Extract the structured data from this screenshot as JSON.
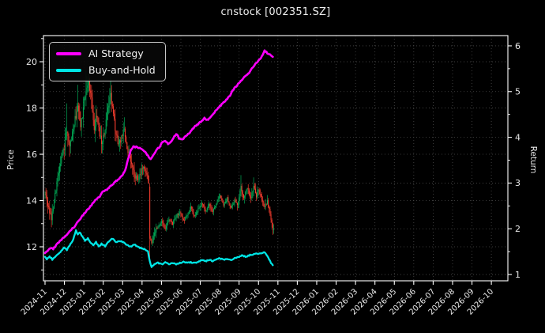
{
  "figure": {
    "background": "#000000",
    "text_color": "#e8e8e8"
  },
  "chart_data": {
    "type": "candlestick+line",
    "title": "cnstock [002351.SZ]",
    "ylabel_left": "Price",
    "ylabel_right": "Return",
    "legend_position": "upper-left",
    "grid": "dotted",
    "grid_color": "#4a4a4a",
    "spine_color": "#ffffff",
    "tick_label_color": "#e8e8e8",
    "x_tick_labels": [
      "2024-11",
      "2024-12",
      "2025-01",
      "2025-02",
      "2025-03",
      "2025-04",
      "2025-05",
      "2025-06",
      "2025-07",
      "2025-08",
      "2025-09",
      "2025-10",
      "2025-11",
      "2025-12",
      "2026-01",
      "2026-02",
      "2026-03",
      "2026-04",
      "2026-05",
      "2026-06",
      "2026-07",
      "2026-08",
      "2026-09",
      "2026-10"
    ],
    "yticks_left": [
      12,
      14,
      16,
      18,
      20
    ],
    "yticks_left_minor": [
      11,
      13,
      15,
      17,
      19,
      21
    ],
    "yticks_right": [
      1,
      2,
      3,
      4,
      5,
      6
    ],
    "yticks_right_minor": [
      1.5,
      2.5,
      3.5,
      4.5,
      5.5
    ],
    "ylim_left": [
      10.53,
      21.13
    ],
    "ylim_right": [
      0.863,
      6.224
    ],
    "data_span_days": 252,
    "series": [
      {
        "name": "AI Strategy",
        "axis": "right",
        "color": "#ff00ff",
        "width": 2.6,
        "jitter": 0.014,
        "points": [
          [
            0,
            1.46
          ],
          [
            3,
            1.52
          ],
          [
            6,
            1.58
          ],
          [
            9,
            1.56
          ],
          [
            13,
            1.66
          ],
          [
            17,
            1.74
          ],
          [
            21,
            1.81
          ],
          [
            25,
            1.89
          ],
          [
            29,
            1.99
          ],
          [
            32,
            2.04
          ],
          [
            36,
            2.15
          ],
          [
            40,
            2.26
          ],
          [
            43,
            2.33
          ],
          [
            46,
            2.41
          ],
          [
            50,
            2.49
          ],
          [
            53,
            2.58
          ],
          [
            57,
            2.65
          ],
          [
            60,
            2.71
          ],
          [
            63,
            2.8
          ],
          [
            67,
            2.84
          ],
          [
            71,
            2.91
          ],
          [
            75,
            2.99
          ],
          [
            79,
            3.06
          ],
          [
            82,
            3.11
          ],
          [
            85,
            3.16
          ],
          [
            88,
            3.28
          ],
          [
            91,
            3.5
          ],
          [
            94,
            3.7
          ],
          [
            97,
            3.79
          ],
          [
            101,
            3.79
          ],
          [
            104,
            3.76
          ],
          [
            108,
            3.72
          ],
          [
            111,
            3.65
          ],
          [
            114,
            3.57
          ],
          [
            116,
            3.53
          ],
          [
            119,
            3.62
          ],
          [
            122,
            3.72
          ],
          [
            126,
            3.8
          ],
          [
            128,
            3.89
          ],
          [
            132,
            3.93
          ],
          [
            135,
            3.85
          ],
          [
            139,
            3.93
          ],
          [
            142,
            4.03
          ],
          [
            145,
            4.07
          ],
          [
            147,
            3.98
          ],
          [
            151,
            3.96
          ],
          [
            155,
            4.04
          ],
          [
            158,
            4.08
          ],
          [
            161,
            4.17
          ],
          [
            165,
            4.24
          ],
          [
            168,
            4.29
          ],
          [
            172,
            4.36
          ],
          [
            175,
            4.42
          ],
          [
            179,
            4.37
          ],
          [
            182,
            4.46
          ],
          [
            186,
            4.55
          ],
          [
            189,
            4.62
          ],
          [
            193,
            4.7
          ],
          [
            196,
            4.76
          ],
          [
            199,
            4.82
          ],
          [
            203,
            4.91
          ],
          [
            206,
            5.03
          ],
          [
            210,
            5.12
          ],
          [
            213,
            5.2
          ],
          [
            217,
            5.28
          ],
          [
            220,
            5.34
          ],
          [
            224,
            5.41
          ],
          [
            227,
            5.51
          ],
          [
            231,
            5.6
          ],
          [
            234,
            5.67
          ],
          [
            238,
            5.77
          ],
          [
            241,
            5.9
          ],
          [
            244,
            5.84
          ],
          [
            247,
            5.8
          ],
          [
            250,
            5.75
          ]
        ]
      },
      {
        "name": "Buy-and-Hold",
        "axis": "right",
        "color": "#00e5e5",
        "width": 2.3,
        "jitter": 0.013,
        "points": [
          [
            0,
            1.4
          ],
          [
            2,
            1.34
          ],
          [
            5,
            1.4
          ],
          [
            8,
            1.33
          ],
          [
            11,
            1.38
          ],
          [
            14,
            1.44
          ],
          [
            17,
            1.5
          ],
          [
            21,
            1.6
          ],
          [
            24,
            1.54
          ],
          [
            27,
            1.63
          ],
          [
            31,
            1.76
          ],
          [
            34,
            1.96
          ],
          [
            36,
            1.88
          ],
          [
            38,
            1.93
          ],
          [
            41,
            1.83
          ],
          [
            44,
            1.74
          ],
          [
            47,
            1.79
          ],
          [
            50,
            1.7
          ],
          [
            53,
            1.64
          ],
          [
            56,
            1.71
          ],
          [
            59,
            1.61
          ],
          [
            62,
            1.67
          ],
          [
            66,
            1.62
          ],
          [
            70,
            1.73
          ],
          [
            74,
            1.79
          ],
          [
            78,
            1.7
          ],
          [
            82,
            1.74
          ],
          [
            86,
            1.7
          ],
          [
            90,
            1.65
          ],
          [
            94,
            1.61
          ],
          [
            98,
            1.66
          ],
          [
            102,
            1.61
          ],
          [
            106,
            1.57
          ],
          [
            110,
            1.55
          ],
          [
            113,
            1.5
          ],
          [
            115,
            1.28
          ],
          [
            117,
            1.17
          ],
          [
            120,
            1.23
          ],
          [
            124,
            1.26
          ],
          [
            128,
            1.22
          ],
          [
            132,
            1.26
          ],
          [
            136,
            1.23
          ],
          [
            140,
            1.26
          ],
          [
            144,
            1.23
          ],
          [
            148,
            1.25
          ],
          [
            152,
            1.28
          ],
          [
            156,
            1.25
          ],
          [
            160,
            1.27
          ],
          [
            164,
            1.25
          ],
          [
            168,
            1.28
          ],
          [
            172,
            1.31
          ],
          [
            176,
            1.29
          ],
          [
            180,
            1.32
          ],
          [
            184,
            1.3
          ],
          [
            188,
            1.33
          ],
          [
            192,
            1.36
          ],
          [
            196,
            1.32
          ],
          [
            200,
            1.35
          ],
          [
            204,
            1.32
          ],
          [
            208,
            1.35
          ],
          [
            212,
            1.38
          ],
          [
            216,
            1.42
          ],
          [
            220,
            1.39
          ],
          [
            224,
            1.42
          ],
          [
            228,
            1.44
          ],
          [
            231,
            1.47
          ],
          [
            234,
            1.44
          ],
          [
            237,
            1.47
          ],
          [
            240,
            1.49
          ],
          [
            242,
            1.46
          ],
          [
            244,
            1.41
          ],
          [
            246,
            1.34
          ],
          [
            248,
            1.26
          ],
          [
            250,
            1.2
          ]
        ]
      }
    ],
    "candles": {
      "up_color": "#00a553",
      "down_color": "#ef3b2d",
      "close_waypoints": [
        [
          0,
          14.35
        ],
        [
          2,
          14.0
        ],
        [
          5,
          13.5
        ],
        [
          7,
          13.2
        ],
        [
          10,
          14.0
        ],
        [
          13,
          14.8
        ],
        [
          16,
          15.4
        ],
        [
          19,
          16.0
        ],
        [
          21,
          16.3
        ],
        [
          24,
          17.1
        ],
        [
          27,
          16.3
        ],
        [
          30,
          16.9
        ],
        [
          33,
          17.5
        ],
        [
          36,
          18.0
        ],
        [
          39,
          17.3
        ],
        [
          42,
          17.9
        ],
        [
          45,
          18.8
        ],
        [
          48,
          19.2
        ],
        [
          51,
          18.3
        ],
        [
          54,
          17.2
        ],
        [
          57,
          17.7
        ],
        [
          60,
          16.8
        ],
        [
          63,
          16.5
        ],
        [
          66,
          17.2
        ],
        [
          69,
          18.0
        ],
        [
          72,
          18.6
        ],
        [
          75,
          17.7
        ],
        [
          78,
          16.9
        ],
        [
          81,
          16.4
        ],
        [
          84,
          16.7
        ],
        [
          87,
          17.1
        ],
        [
          90,
          16.3
        ],
        [
          94,
          15.7
        ],
        [
          98,
          15.1
        ],
        [
          101,
          14.9
        ],
        [
          104,
          15.1
        ],
        [
          108,
          15.5
        ],
        [
          111,
          15.2
        ],
        [
          114,
          14.8
        ],
        [
          115,
          12.35
        ],
        [
          117,
          12.1
        ],
        [
          120,
          12.6
        ],
        [
          124,
          12.9
        ],
        [
          128,
          13.1
        ],
        [
          132,
          12.8
        ],
        [
          136,
          13.2
        ],
        [
          140,
          13.0
        ],
        [
          144,
          13.3
        ],
        [
          148,
          13.5
        ],
        [
          152,
          13.1
        ],
        [
          156,
          13.4
        ],
        [
          160,
          13.7
        ],
        [
          164,
          13.3
        ],
        [
          168,
          13.6
        ],
        [
          172,
          13.9
        ],
        [
          176,
          13.5
        ],
        [
          180,
          13.8
        ],
        [
          184,
          13.5
        ],
        [
          188,
          13.9
        ],
        [
          192,
          14.2
        ],
        [
          196,
          13.8
        ],
        [
          200,
          14.1
        ],
        [
          204,
          13.7
        ],
        [
          208,
          14.0
        ],
        [
          212,
          13.8
        ],
        [
          215,
          14.6
        ],
        [
          218,
          14.2
        ],
        [
          222,
          14.5
        ],
        [
          226,
          14.1
        ],
        [
          229,
          14.6
        ],
        [
          232,
          14.2
        ],
        [
          235,
          14.5
        ],
        [
          238,
          14.0
        ],
        [
          241,
          13.7
        ],
        [
          244,
          14.0
        ],
        [
          247,
          13.4
        ],
        [
          249,
          13.05
        ],
        [
          250,
          12.8
        ],
        [
          251,
          12.85
        ]
      ],
      "volatility_segments": [
        [
          0,
          20,
          0.4
        ],
        [
          21,
          42,
          0.55
        ],
        [
          43,
          63,
          0.62
        ],
        [
          64,
          82,
          0.55
        ],
        [
          83,
          103,
          0.42
        ],
        [
          104,
          114,
          0.35
        ],
        [
          116,
          124,
          0.28
        ],
        [
          125,
          210,
          0.2
        ],
        [
          211,
          234,
          0.3
        ],
        [
          235,
          251,
          0.26
        ]
      ],
      "high_spikes": {
        "24": 18.2,
        "36": 19.0,
        "45": 19.6,
        "48": 19.75,
        "72": 19.35,
        "87": 17.6,
        "215": 15.1,
        "229": 15.0
      },
      "low_spikes": {
        "7": 12.9,
        "251": 12.6
      },
      "crash": {
        "day": 115,
        "open": 14.6,
        "high": 14.75,
        "low": 11.3,
        "close": 12.35
      }
    }
  }
}
